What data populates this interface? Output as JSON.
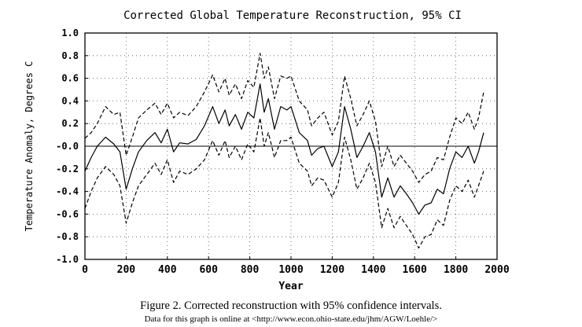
{
  "chart_data": {
    "type": "line",
    "title": "Corrected Global Temperature Reconstruction, 95% CI",
    "xlabel": "Year",
    "ylabel": "Temperature Anomaly, Degrees C",
    "xlim": [
      0,
      2000
    ],
    "ylim": [
      -1.0,
      1.0
    ],
    "xticks": [
      0,
      200,
      400,
      600,
      800,
      1000,
      1200,
      1400,
      1600,
      1800,
      2000
    ],
    "yticks": [
      1.0,
      0.8,
      0.6,
      0.4,
      0.2,
      0.0,
      -0.2,
      -0.4,
      -0.6,
      -0.8,
      -1.0
    ],
    "ytick_labels": [
      "1.0",
      "0.8",
      "0.6",
      "0.4",
      "0.2",
      "-0.0",
      "-0.2",
      "-0.4",
      "-0.6",
      "-0.8",
      "-1.0"
    ],
    "grid": "dotted",
    "reference_line": 0.0,
    "x": [
      0,
      30,
      60,
      100,
      140,
      170,
      200,
      230,
      260,
      300,
      340,
      370,
      400,
      430,
      460,
      500,
      540,
      580,
      620,
      650,
      680,
      700,
      730,
      760,
      790,
      820,
      850,
      870,
      890,
      920,
      950,
      980,
      1000,
      1040,
      1080,
      1100,
      1130,
      1160,
      1200,
      1230,
      1260,
      1290,
      1320,
      1350,
      1380,
      1410,
      1440,
      1470,
      1500,
      1530,
      1560,
      1590,
      1620,
      1650,
      1680,
      1710,
      1740,
      1770,
      1800,
      1830,
      1860,
      1890,
      1910,
      1935
    ],
    "series": [
      {
        "style": "solid",
        "values": [
          -0.22,
          -0.1,
          0.0,
          0.08,
          0.02,
          -0.05,
          -0.38,
          -0.2,
          -0.05,
          0.05,
          0.12,
          0.03,
          0.15,
          -0.05,
          0.03,
          0.02,
          0.06,
          0.18,
          0.35,
          0.2,
          0.32,
          0.18,
          0.28,
          0.15,
          0.3,
          0.25,
          0.55,
          0.3,
          0.42,
          0.15,
          0.35,
          0.32,
          0.35,
          0.12,
          0.05,
          -0.08,
          -0.02,
          0.0,
          -0.18,
          -0.05,
          0.35,
          0.15,
          -0.1,
          0.0,
          0.12,
          -0.05,
          -0.45,
          -0.28,
          -0.45,
          -0.35,
          -0.42,
          -0.5,
          -0.6,
          -0.52,
          -0.5,
          -0.38,
          -0.42,
          -0.2,
          -0.05,
          -0.1,
          0.0,
          -0.15,
          -0.05,
          0.12
        ]
      },
      {
        "style": "dashed",
        "values": [
          0.07,
          0.12,
          0.2,
          0.35,
          0.28,
          0.3,
          -0.08,
          0.08,
          0.25,
          0.32,
          0.38,
          0.28,
          0.38,
          0.25,
          0.3,
          0.27,
          0.35,
          0.48,
          0.63,
          0.48,
          0.6,
          0.45,
          0.55,
          0.42,
          0.58,
          0.52,
          0.82,
          0.6,
          0.7,
          0.42,
          0.62,
          0.6,
          0.62,
          0.4,
          0.32,
          0.18,
          0.25,
          0.3,
          0.1,
          0.22,
          0.62,
          0.42,
          0.18,
          0.28,
          0.4,
          0.22,
          -0.18,
          0.0,
          -0.18,
          -0.08,
          -0.15,
          -0.22,
          -0.32,
          -0.25,
          -0.22,
          -0.1,
          -0.12,
          0.08,
          0.25,
          0.2,
          0.3,
          0.15,
          0.25,
          0.48
        ]
      },
      {
        "style": "dashed",
        "values": [
          -0.55,
          -0.4,
          -0.28,
          -0.18,
          -0.25,
          -0.35,
          -0.68,
          -0.5,
          -0.35,
          -0.25,
          -0.15,
          -0.25,
          -0.12,
          -0.32,
          -0.22,
          -0.25,
          -0.2,
          -0.12,
          0.05,
          -0.08,
          0.05,
          -0.1,
          0.0,
          -0.12,
          0.02,
          -0.05,
          0.25,
          0.0,
          0.12,
          -0.1,
          0.05,
          0.05,
          0.08,
          -0.15,
          -0.22,
          -0.35,
          -0.28,
          -0.3,
          -0.45,
          -0.32,
          0.08,
          -0.12,
          -0.38,
          -0.28,
          -0.15,
          -0.32,
          -0.72,
          -0.55,
          -0.72,
          -0.62,
          -0.7,
          -0.78,
          -0.9,
          -0.8,
          -0.78,
          -0.65,
          -0.7,
          -0.48,
          -0.35,
          -0.4,
          -0.3,
          -0.45,
          -0.35,
          -0.22
        ]
      }
    ]
  },
  "caption": {
    "line1": "Figure 2. Corrected reconstruction with 95% confidence intervals.",
    "line2": "Data for this graph is online at <http://www.econ.ohio-state.edu/jhm/AGW/Loehle/>"
  }
}
